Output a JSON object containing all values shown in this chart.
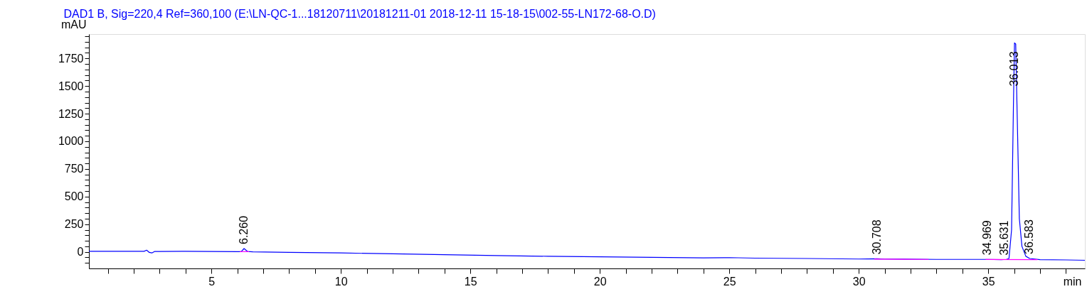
{
  "chart_data": {
    "type": "line",
    "title": "DAD1 B, Sig=220,4 Ref=360,100 (E:\\LN-QC-1...18120711\\20181211-01 2018-12-11 15-18-15\\002-55-LN172-68-O.D)",
    "xlabel": "min",
    "ylabel": "mAU",
    "xlim": [
      0.27,
      38.73
    ],
    "ylim": [
      -150,
      1970
    ],
    "xticks": [
      {
        "value": 1,
        "label": null
      },
      {
        "value": 2,
        "label": null
      },
      {
        "value": 3,
        "label": null
      },
      {
        "value": 4,
        "label": null
      },
      5,
      {
        "value": 6,
        "label": null
      },
      {
        "value": 7,
        "label": null
      },
      {
        "value": 8,
        "label": null
      },
      {
        "value": 9,
        "label": null
      },
      10,
      {
        "value": 11,
        "label": null
      },
      {
        "value": 12,
        "label": null
      },
      {
        "value": 13,
        "label": null
      },
      {
        "value": 14,
        "label": null
      },
      15,
      {
        "value": 16,
        "label": null
      },
      {
        "value": 17,
        "label": null
      },
      {
        "value": 18,
        "label": null
      },
      {
        "value": 19,
        "label": null
      },
      20,
      {
        "value": 21,
        "label": null
      },
      {
        "value": 22,
        "label": null
      },
      {
        "value": 23,
        "label": null
      },
      {
        "value": 24,
        "label": null
      },
      25,
      {
        "value": 26,
        "label": null
      },
      {
        "value": 27,
        "label": null
      },
      {
        "value": 28,
        "label": null
      },
      {
        "value": 29,
        "label": null
      },
      30,
      {
        "value": 31,
        "label": null
      },
      {
        "value": 32,
        "label": null
      },
      {
        "value": 33,
        "label": null
      },
      {
        "value": 34,
        "label": null
      },
      35,
      {
        "value": 36,
        "label": null
      },
      {
        "value": 37,
        "label": null
      },
      {
        "value": 38,
        "label": null
      }
    ],
    "yticks": [
      {
        "value": -100,
        "label": null
      },
      {
        "value": -50,
        "label": null
      },
      0,
      {
        "value": 50,
        "label": null
      },
      {
        "value": 100,
        "label": null
      },
      {
        "value": 150,
        "label": null
      },
      {
        "value": 200,
        "label": null
      },
      250,
      {
        "value": 300,
        "label": null
      },
      {
        "value": 350,
        "label": null
      },
      {
        "value": 400,
        "label": null
      },
      {
        "value": 450,
        "label": null
      },
      500,
      {
        "value": 550,
        "label": null
      },
      {
        "value": 600,
        "label": null
      },
      {
        "value": 650,
        "label": null
      },
      {
        "value": 700,
        "label": null
      },
      750,
      {
        "value": 800,
        "label": null
      },
      {
        "value": 850,
        "label": null
      },
      {
        "value": 900,
        "label": null
      },
      {
        "value": 950,
        "label": null
      },
      1000,
      {
        "value": 1050,
        "label": null
      },
      {
        "value": 1100,
        "label": null
      },
      {
        "value": 1150,
        "label": null
      },
      {
        "value": 1200,
        "label": null
      },
      1250,
      {
        "value": 1300,
        "label": null
      },
      {
        "value": 1350,
        "label": null
      },
      {
        "value": 1400,
        "label": null
      },
      {
        "value": 1450,
        "label": null
      },
      1500,
      {
        "value": 1550,
        "label": null
      },
      {
        "value": 1600,
        "label": null
      },
      {
        "value": 1650,
        "label": null
      },
      {
        "value": 1700,
        "label": null
      },
      1750,
      {
        "value": 1800,
        "label": null
      },
      {
        "value": 1850,
        "label": null
      },
      {
        "value": 1900,
        "label": null
      },
      {
        "value": 1950,
        "label": null
      }
    ],
    "grid": false,
    "marker": "none",
    "line_style": "solid",
    "series": [
      {
        "color": "#0000ff",
        "x": [
          0.27,
          1,
          2,
          2.4,
          2.5,
          2.6,
          2.7,
          2.8,
          3,
          4,
          5,
          6,
          6.15,
          6.26,
          6.4,
          6.6,
          8,
          10,
          12,
          14,
          16,
          18,
          20,
          22,
          24,
          25,
          26,
          28,
          30,
          30.7,
          31,
          33,
          34.9,
          35.5,
          35.7,
          35.8,
          35.9,
          35.97,
          36.013,
          36.06,
          36.12,
          36.2,
          36.3,
          36.45,
          36.6,
          37,
          38,
          38.73
        ],
        "values": [
          5,
          5,
          5,
          5,
          15,
          -5,
          -10,
          3,
          4,
          5,
          4,
          2,
          2,
          30,
          3,
          0,
          -5,
          -10,
          -18,
          -25,
          -33,
          -40,
          -45,
          -50,
          -55,
          -52,
          -57,
          -60,
          -65,
          -62,
          -65,
          -68,
          -68,
          -70,
          -68,
          -60,
          200,
          1300,
          1890,
          1880,
          1200,
          300,
          50,
          -40,
          -60,
          -70,
          -73,
          -76
        ]
      },
      {
        "color": "#ff00ff",
        "x": [
          6.1,
          6.45,
          6.5,
          30.6,
          32.7,
          32.8,
          34.9,
          36.9
        ],
        "values": [
          2,
          2,
          null,
          -66,
          -68,
          null,
          -69,
          -71
        ]
      }
    ],
    "annotations": [
      {
        "text": "6.260",
        "x": 6.26,
        "y": 30
      },
      {
        "text": "30.708",
        "x": 30.708,
        "y": -62
      },
      {
        "text": "34.969",
        "x": 34.969,
        "y": -68
      },
      {
        "text": "35.631",
        "x": 35.631,
        "y": -70
      },
      {
        "text": "36.013",
        "x": 36.013,
        "y": 1890
      },
      {
        "text": "36.583",
        "x": 36.583,
        "y": -60
      }
    ]
  }
}
